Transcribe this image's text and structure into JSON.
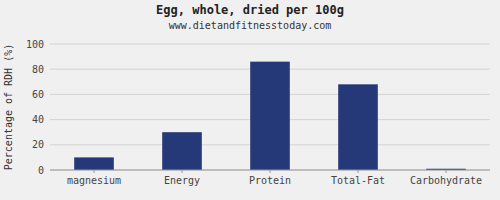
{
  "chart_data": {
    "type": "bar",
    "title": "Egg, whole, dried per 100g",
    "subtitle": "www.dietandfitnesstoday.com",
    "categories": [
      "magnesium",
      "Energy",
      "Protein",
      "Total-Fat",
      "Carbohydrate"
    ],
    "values": [
      10,
      30,
      86,
      68,
      1
    ],
    "color": "#253878",
    "ylabel": "Percentage of RDH (%)",
    "ylim": [
      0,
      100
    ],
    "yticks": [
      0,
      20,
      40,
      60,
      80,
      100
    ],
    "grid": true
  }
}
